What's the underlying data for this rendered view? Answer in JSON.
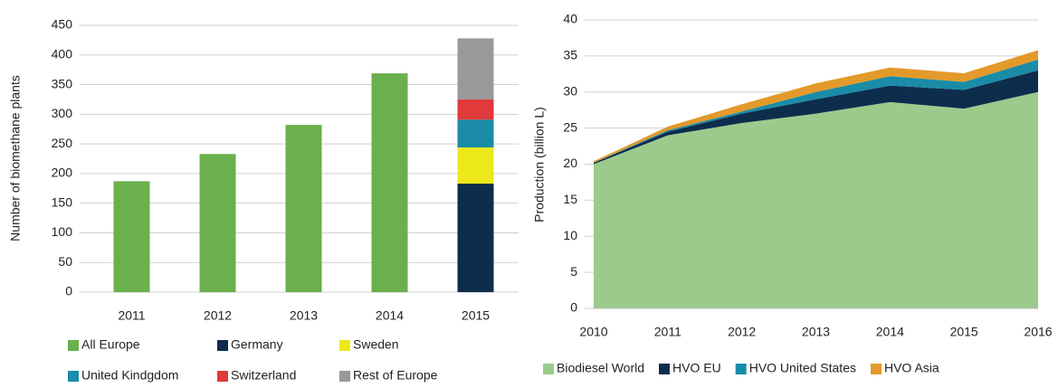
{
  "chart_data": [
    {
      "type": "stacked_bar",
      "y_label": "Number of biomethane plants",
      "categories": [
        "2011",
        "2012",
        "2013",
        "2014",
        "2015"
      ],
      "series": [
        {
          "name": "All Europe",
          "color": "#6ab04c",
          "values": [
            187,
            233,
            282,
            369,
            null
          ]
        },
        {
          "name": "Germany",
          "color": "#0d2d4c",
          "values": [
            null,
            null,
            null,
            null,
            183
          ]
        },
        {
          "name": "Sweden",
          "color": "#ece81a",
          "values": [
            null,
            null,
            null,
            null,
            61
          ]
        },
        {
          "name": "United Kindgdom",
          "color": "#1a8ca8",
          "values": [
            null,
            null,
            null,
            null,
            47
          ]
        },
        {
          "name": "Switzerland",
          "color": "#e03a3a",
          "values": [
            null,
            null,
            null,
            null,
            34
          ]
        },
        {
          "name": "Rest of Europe",
          "color": "#999999",
          "values": [
            null,
            null,
            null,
            null,
            103
          ]
        }
      ],
      "ylim": [
        0,
        450
      ],
      "yticks": [
        0,
        50,
        100,
        150,
        200,
        250,
        300,
        350,
        400,
        450
      ],
      "grid": true
    },
    {
      "type": "stacked_area",
      "y_label": "Production (billion L)",
      "x": [
        2010,
        2011,
        2012,
        2013,
        2014,
        2015,
        2016
      ],
      "series": [
        {
          "name": "Biodiesel World",
          "color": "#9bcb8c",
          "values": [
            20,
            24,
            25.7,
            27,
            28.6,
            27.7,
            30
          ]
        },
        {
          "name": "HVO EU",
          "color": "#0d2d4c",
          "values": [
            0.2,
            0.5,
            1.3,
            2,
            2.3,
            2.6,
            3
          ]
        },
        {
          "name": "HVO United States",
          "color": "#1a8ca8",
          "values": [
            0,
            0.2,
            0.3,
            1,
            1.3,
            1.1,
            1.5
          ]
        },
        {
          "name": "HVO Asia",
          "color": "#e39a2a",
          "values": [
            0.2,
            0.5,
            1,
            1.2,
            1.2,
            1.2,
            1.3
          ]
        }
      ],
      "xlim": [
        2010,
        2016
      ],
      "xticks": [
        2010,
        2011,
        2012,
        2013,
        2014,
        2015,
        2016
      ],
      "ylim": [
        0,
        40
      ],
      "yticks": [
        0,
        5,
        10,
        15,
        20,
        25,
        30,
        35,
        40
      ],
      "grid": true
    }
  ]
}
